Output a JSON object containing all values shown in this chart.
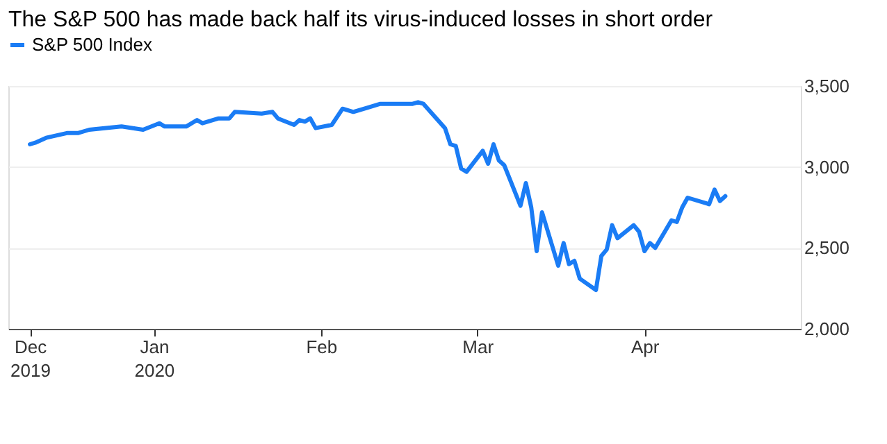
{
  "chart_data": {
    "type": "line",
    "title": "The S&P 500 has made back half its virus-induced losses in short order",
    "x": [
      "2019-12-09",
      "2019-12-10",
      "2019-12-12",
      "2019-12-16",
      "2019-12-18",
      "2019-12-20",
      "2019-12-26",
      "2019-12-30",
      "2020-01-02",
      "2020-01-03",
      "2020-01-07",
      "2020-01-09",
      "2020-01-10",
      "2020-01-13",
      "2020-01-15",
      "2020-01-16",
      "2020-01-21",
      "2020-01-23",
      "2020-01-24",
      "2020-01-27",
      "2020-01-28",
      "2020-01-29",
      "2020-01-30",
      "2020-01-31",
      "2020-02-03",
      "2020-02-05",
      "2020-02-07",
      "2020-02-10",
      "2020-02-12",
      "2020-02-13",
      "2020-02-18",
      "2020-02-19",
      "2020-02-20",
      "2020-02-24",
      "2020-02-25",
      "2020-02-26",
      "2020-02-27",
      "2020-02-28",
      "2020-03-02",
      "2020-03-03",
      "2020-03-04",
      "2020-03-05",
      "2020-03-06",
      "2020-03-09",
      "2020-03-10",
      "2020-03-11",
      "2020-03-12",
      "2020-03-13",
      "2020-03-16",
      "2020-03-17",
      "2020-03-18",
      "2020-03-19",
      "2020-03-20",
      "2020-03-23",
      "2020-03-24",
      "2020-03-25",
      "2020-03-26",
      "2020-03-27",
      "2020-03-30",
      "2020-03-31",
      "2020-04-01",
      "2020-04-02",
      "2020-04-03",
      "2020-04-06",
      "2020-04-07",
      "2020-04-08",
      "2020-04-09",
      "2020-04-13",
      "2020-04-14",
      "2020-04-15",
      "2020-04-16"
    ],
    "series": [
      {
        "name": "S&P 500 Index",
        "color": "#1a7cf5",
        "values": [
          3140,
          3150,
          3180,
          3210,
          3210,
          3230,
          3250,
          3230,
          3270,
          3250,
          3250,
          3290,
          3270,
          3300,
          3300,
          3340,
          3330,
          3340,
          3300,
          3260,
          3290,
          3280,
          3300,
          3240,
          3260,
          3360,
          3340,
          3370,
          3390,
          3390,
          3390,
          3400,
          3390,
          3240,
          3140,
          3130,
          2990,
          2970,
          3100,
          3020,
          3140,
          3040,
          3010,
          2760,
          2900,
          2750,
          2480,
          2720,
          2390,
          2530,
          2400,
          2420,
          2310,
          2240,
          2450,
          2490,
          2640,
          2560,
          2640,
          2600,
          2480,
          2530,
          2500,
          2670,
          2660,
          2750,
          2810,
          2770,
          2860,
          2790,
          2820
        ]
      }
    ],
    "xlim": [
      "2019-12-05",
      "2020-04-30"
    ],
    "xticks": [
      {
        "value": "2019-12-09",
        "label": "Dec 2019"
      },
      {
        "value": "2020-01-01",
        "label": "Jan 2020"
      },
      {
        "value": "2020-02-01",
        "label": "Feb"
      },
      {
        "value": "2020-03-01",
        "label": "Mar"
      },
      {
        "value": "2020-04-01",
        "label": "Apr"
      }
    ],
    "ylim": [
      2000,
      3500
    ],
    "yticks": [
      {
        "value": 2000,
        "label": "2,000"
      },
      {
        "value": 2500,
        "label": "2,500"
      },
      {
        "value": 3000,
        "label": "3,000"
      },
      {
        "value": 3500,
        "label": "3,500"
      }
    ],
    "grid": "y",
    "legend": "top left",
    "marker": "none",
    "line_style": "solid"
  }
}
